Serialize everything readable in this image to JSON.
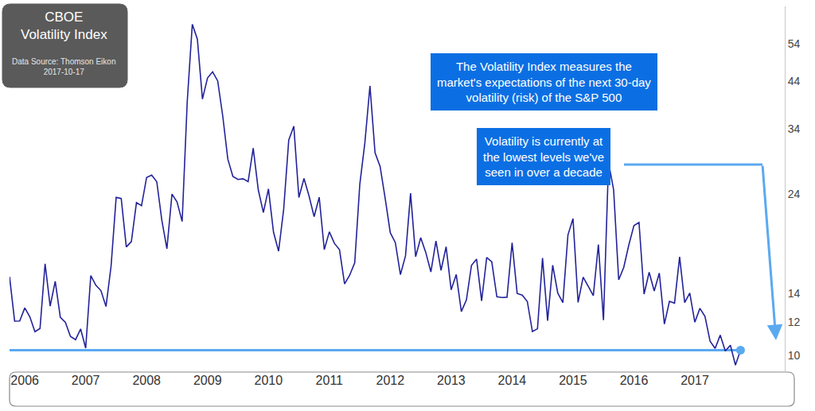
{
  "chart_data": {
    "type": "line",
    "title": "CBOE Volatility Index",
    "subtitle": "Data Source: Thomson Eikon",
    "date": "2017-10-17",
    "annotations": [
      {
        "text": "The Volatility Index measures the market's expectations of the next 30-day volatility (risk) of the S&P 500"
      },
      {
        "text": "Volatility is currently at the lowest levels we've seen in over a decade"
      }
    ],
    "categories": [
      null,
      null,
      null,
      "2006",
      null,
      null,
      null,
      null,
      null,
      null,
      null,
      null,
      null,
      null,
      null,
      "2007",
      null,
      null,
      null,
      null,
      null,
      null,
      null,
      null,
      null,
      null,
      null,
      "2008",
      null,
      null,
      null,
      null,
      null,
      null,
      null,
      null,
      null,
      null,
      null,
      "2009",
      null,
      null,
      null,
      null,
      null,
      null,
      null,
      null,
      null,
      null,
      null,
      "2010",
      null,
      null,
      null,
      null,
      null,
      null,
      null,
      null,
      null,
      null,
      null,
      "2011",
      null,
      null,
      null,
      null,
      null,
      null,
      null,
      null,
      null,
      null,
      null,
      "2012",
      null,
      null,
      null,
      null,
      null,
      null,
      null,
      null,
      null,
      null,
      null,
      "2013",
      null,
      null,
      null,
      null,
      null,
      null,
      null,
      null,
      null,
      null,
      null,
      "2014",
      null,
      null,
      null,
      null,
      null,
      null,
      null,
      null,
      null,
      null,
      null,
      "2015",
      null,
      null,
      null,
      null,
      null,
      null,
      null,
      null,
      null,
      null,
      null,
      "2016",
      null,
      null,
      null,
      null,
      null,
      null,
      null,
      null,
      null,
      null,
      null,
      "2017",
      null,
      null,
      null,
      null,
      null,
      null,
      null,
      null,
      null
    ],
    "values": [
      15.32,
      12.06,
      12.07,
      12.95,
      12.34,
      11.39,
      11.59,
      16.44,
      13.08,
      14.95,
      12.31,
      11.98,
      11.1,
      10.91,
      11.56,
      10.42,
      15.42,
      14.64,
      14.22,
      13.05,
      16.23,
      23.52,
      23.38,
      18.0,
      18.53,
      22.87,
      22.5,
      26.2,
      26.54,
      25.61,
      20.79,
      17.83,
      23.95,
      22.94,
      20.65,
      39.39,
      59.89,
      55.28,
      40.0,
      44.84,
      46.35,
      44.14,
      36.5,
      28.92,
      26.35,
      25.92,
      26.01,
      25.61,
      30.69,
      24.51,
      21.68,
      24.62,
      19.5,
      17.59,
      22.05,
      32.07,
      34.54,
      23.5,
      26.05,
      23.7,
      21.2,
      23.54,
      17.75,
      19.53,
      18.35,
      17.74,
      14.75,
      15.45,
      16.52,
      25.25,
      31.62,
      42.96,
      29.96,
      27.8,
      23.4,
      19.44,
      18.43,
      15.5,
      17.15,
      24.06,
      17.08,
      18.93,
      17.47,
      15.73,
      18.6,
      15.87,
      18.02,
      14.28,
      15.51,
      12.7,
      13.52,
      16.3,
      16.86,
      13.45,
      17.01,
      16.6,
      13.75,
      13.7,
      13.72,
      18.41,
      14.0,
      13.88,
      13.41,
      11.4,
      11.57,
      16.95,
      12.09,
      16.31,
      14.03,
      13.33,
      19.2,
      20.97,
      13.34,
      15.29,
      14.55,
      13.84,
      18.23,
      12.12,
      28.43,
      24.5,
      15.07,
      16.13,
      18.21,
      20.2,
      20.55,
      13.95,
      15.7,
      14.19,
      15.63,
      11.87,
      13.42,
      13.29,
      17.06,
      13.33,
      14.04,
      11.99,
      12.92,
      12.37,
      10.82,
      10.41,
      11.18,
      10.26,
      10.59,
      9.51,
      10.31
    ],
    "color": "#23239a",
    "reference_line": {
      "value": 10.31,
      "color": "#5aa9f0"
    },
    "log": "y",
    "grid": false,
    "ylim": [
      9.2,
      66
    ],
    "yticks": [
      10,
      12,
      14,
      24,
      34,
      44,
      54
    ]
  }
}
